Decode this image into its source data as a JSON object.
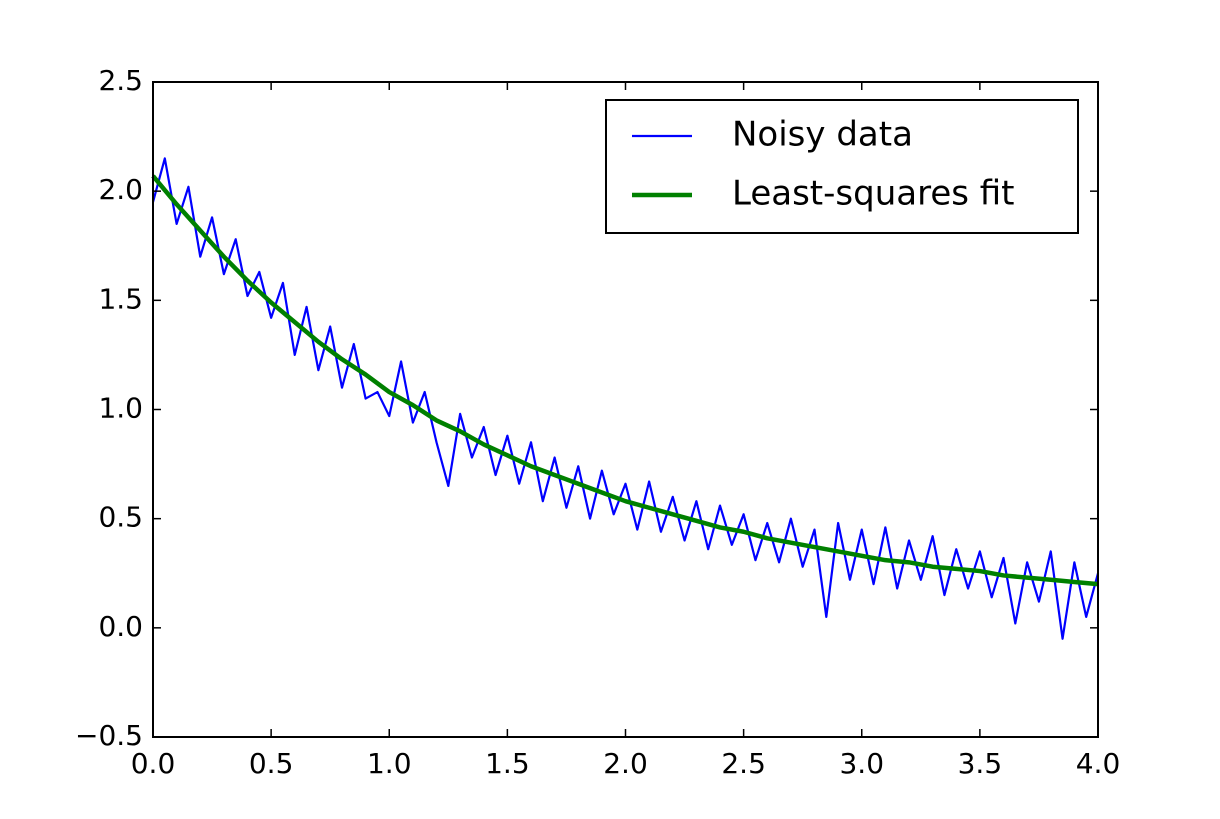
{
  "chart_data": {
    "type": "line",
    "legend": "upper right",
    "grid": false,
    "xlim": [
      0,
      4
    ],
    "ylim": [
      -0.5,
      2.5
    ],
    "xticks": [
      {
        "value": 0,
        "label": "0.0"
      },
      0.5,
      {
        "value": 1,
        "label": "1.0"
      },
      1.5,
      {
        "value": 2,
        "label": "2.0"
      },
      2.5,
      {
        "value": 3,
        "label": "3.0"
      },
      3.5,
      {
        "value": 4,
        "label": "4.0"
      }
    ],
    "yticks": [
      {
        "value": -0.5,
        "label": "−0.5"
      },
      {
        "value": 0,
        "label": "0.0"
      },
      0.5,
      {
        "value": 1,
        "label": "1.0"
      },
      1.5,
      {
        "value": 2,
        "label": "2.0"
      },
      2.5
    ],
    "series": [
      {
        "name": "Noisy data",
        "color": "#0000ff",
        "width": 2.2,
        "x": [
          0,
          0.05,
          0.1,
          0.15,
          0.2,
          0.25,
          0.3,
          0.35,
          0.4,
          0.45,
          0.5,
          0.55,
          0.6,
          0.65,
          0.7,
          0.75,
          0.8,
          0.85,
          0.9,
          0.95,
          1,
          1.05,
          1.1,
          1.15,
          1.2,
          1.25,
          1.3,
          1.35,
          1.4,
          1.45,
          1.5,
          1.55,
          1.6,
          1.65,
          1.7,
          1.75,
          1.8,
          1.85,
          1.9,
          1.95,
          2,
          2.05,
          2.1,
          2.15,
          2.2,
          2.25,
          2.3,
          2.35,
          2.4,
          2.45,
          2.5,
          2.55,
          2.6,
          2.65,
          2.7,
          2.75,
          2.8,
          2.85,
          2.9,
          2.95,
          3,
          3.05,
          3.1,
          3.15,
          3.2,
          3.25,
          3.3,
          3.35,
          3.4,
          3.45,
          3.5,
          3.55,
          3.6,
          3.65,
          3.7,
          3.75,
          3.8,
          3.85,
          3.9,
          3.95,
          4
        ],
        "values": [
          1.95,
          2.15,
          1.85,
          2.02,
          1.7,
          1.88,
          1.62,
          1.78,
          1.52,
          1.63,
          1.42,
          1.58,
          1.25,
          1.47,
          1.18,
          1.38,
          1.1,
          1.3,
          1.05,
          1.08,
          0.97,
          1.22,
          0.94,
          1.08,
          0.85,
          0.65,
          0.98,
          0.78,
          0.92,
          0.7,
          0.88,
          0.66,
          0.85,
          0.58,
          0.78,
          0.55,
          0.74,
          0.5,
          0.72,
          0.52,
          0.66,
          0.45,
          0.67,
          0.44,
          0.6,
          0.4,
          0.58,
          0.36,
          0.56,
          0.38,
          0.52,
          0.31,
          0.48,
          0.3,
          0.5,
          0.28,
          0.45,
          0.05,
          0.48,
          0.22,
          0.45,
          0.2,
          0.46,
          0.18,
          0.4,
          0.22,
          0.42,
          0.15,
          0.36,
          0.18,
          0.35,
          0.14,
          0.32,
          0.02,
          0.3,
          0.12,
          0.35,
          -0.05,
          0.3,
          0.05,
          0.25
        ]
      },
      {
        "name": "Least-squares fit",
        "color": "#008000",
        "width": 4.5,
        "x": [
          0,
          0.1,
          0.2,
          0.3,
          0.4,
          0.5,
          0.6,
          0.7,
          0.8,
          0.9,
          1,
          1.1,
          1.2,
          1.3,
          1.4,
          1.5,
          1.6,
          1.7,
          1.8,
          1.9,
          2,
          2.1,
          2.2,
          2.3,
          2.4,
          2.5,
          2.6,
          2.7,
          2.8,
          2.9,
          3,
          3.1,
          3.2,
          3.3,
          3.4,
          3.5,
          3.6,
          3.7,
          3.8,
          3.9,
          4
        ],
        "values": [
          2.07,
          1.94,
          1.82,
          1.7,
          1.59,
          1.49,
          1.4,
          1.31,
          1.23,
          1.16,
          1.08,
          1.02,
          0.95,
          0.9,
          0.84,
          0.79,
          0.74,
          0.7,
          0.66,
          0.62,
          0.58,
          0.55,
          0.52,
          0.49,
          0.46,
          0.44,
          0.41,
          0.39,
          0.37,
          0.35,
          0.33,
          0.31,
          0.3,
          0.28,
          0.27,
          0.26,
          0.24,
          0.23,
          0.22,
          0.21,
          0.2
        ]
      }
    ]
  }
}
